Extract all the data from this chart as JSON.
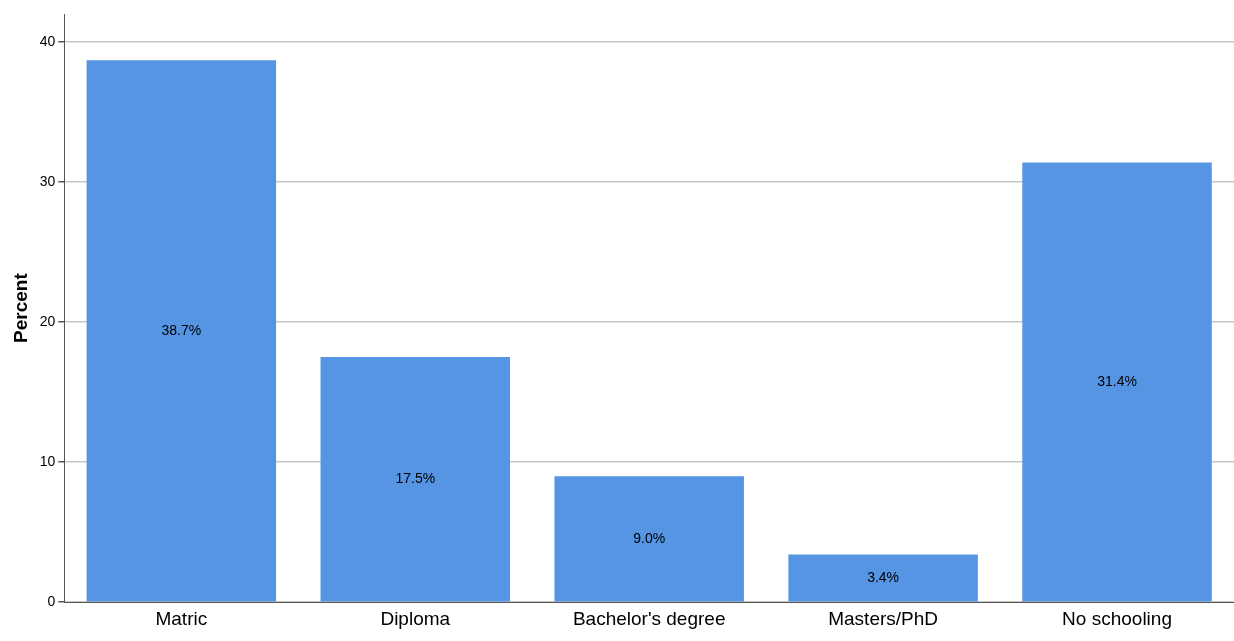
{
  "chart_data": {
    "type": "bar",
    "ylabel": "Percent",
    "categories": [
      "Matric",
      "Diploma",
      "Bachelor's degree",
      "Masters/PhD",
      "No schooling"
    ],
    "values": [
      38.7,
      17.5,
      9.0,
      3.4,
      31.4
    ],
    "value_labels": [
      "38.7%",
      "17.5%",
      "9.0%",
      "3.4%",
      "31.4%"
    ],
    "color": "#5595e4",
    "ylim": [
      0,
      42
    ],
    "yticks": [
      0,
      10,
      20,
      30,
      40
    ],
    "grid": "y",
    "legend": false
  }
}
